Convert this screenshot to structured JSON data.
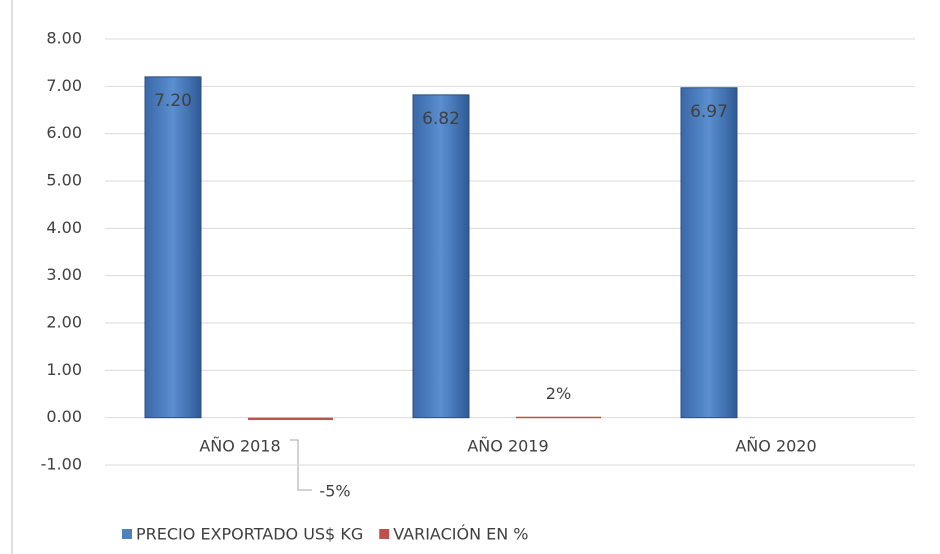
{
  "chart_data": {
    "type": "bar",
    "categories": [
      "AÑO 2018",
      "AÑO 2019",
      "AÑO 2020"
    ],
    "series": [
      {
        "name": "PRECIO EXPORTADO US$ KG",
        "color": "#4f81bd",
        "values": [
          7.2,
          6.82,
          6.97
        ],
        "value_labels": [
          "7.20",
          "6.82",
          "6.97"
        ]
      },
      {
        "name": "VARIACIÓN EN %",
        "color": "#c0504d",
        "values": [
          -0.05,
          0.02,
          null
        ],
        "value_labels": [
          "-5%",
          "2%",
          null
        ]
      }
    ],
    "ylim": [
      -1,
      8
    ],
    "yticks": [
      {
        "value": -1,
        "label": "-1.00"
      },
      {
        "value": 0,
        "label": "0.00"
      },
      {
        "value": 1,
        "label": "1.00"
      },
      {
        "value": 2,
        "label": "2.00"
      },
      {
        "value": 3,
        "label": "3.00"
      },
      {
        "value": 4,
        "label": "4.00"
      },
      {
        "value": 5,
        "label": "5.00"
      },
      {
        "value": 6,
        "label": "6.00"
      },
      {
        "value": 7,
        "label": "7.00"
      },
      {
        "value": 8,
        "label": "8.00"
      }
    ],
    "grid": true,
    "legend": "bottom"
  }
}
